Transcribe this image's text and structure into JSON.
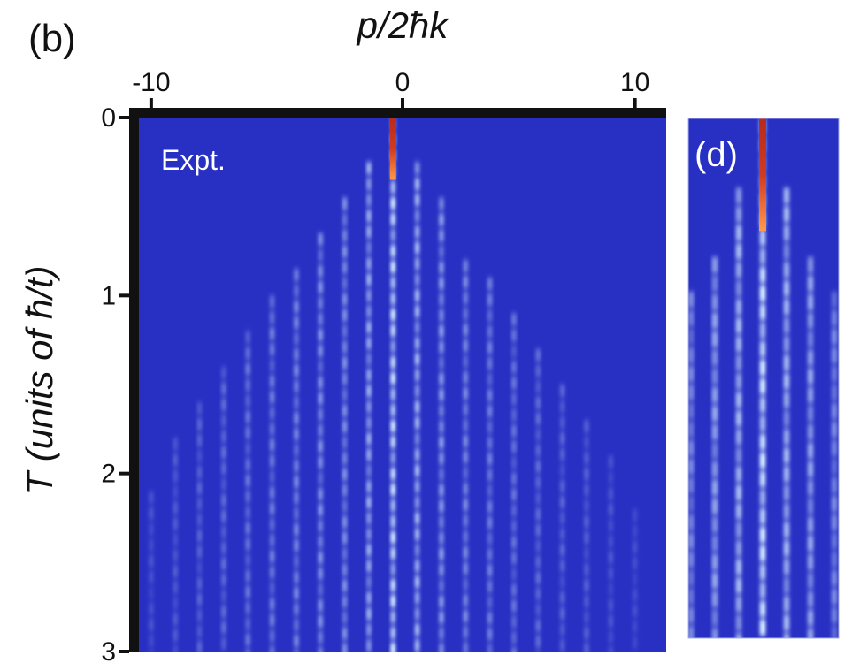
{
  "panel_b_label": "(b)",
  "xlabel": "p/2ħk",
  "ylabel_prefix": "T",
  "ylabel_rest": "(units of ħ/t)",
  "expt_label": "Expt.",
  "panel_d_label": "(d)",
  "colors": {
    "background": "#2830c4",
    "streak": "#cfe6ff",
    "hot": "#c0301e",
    "warm": "#ff9a4a"
  },
  "chart_data": {
    "type": "heatmap",
    "xlabel": "p/2ħk",
    "ylabel": "T (units of ħ/t)",
    "x_ticks": [
      -10,
      0,
      10
    ],
    "y_ticks": [
      0,
      1,
      2,
      3
    ],
    "xlim": [
      -10.8,
      11
    ],
    "ylim": [
      0,
      3
    ],
    "colormap": "blue-white-red",
    "main_streaks": [
      {
        "p": 0,
        "t_start": 0.0,
        "t_end": 3.0,
        "intensity": 1.0
      },
      {
        "p": -1,
        "t_start": 0.25,
        "t_end": 3.0,
        "intensity": 0.7
      },
      {
        "p": 1,
        "t_start": 0.25,
        "t_end": 3.0,
        "intensity": 0.75
      },
      {
        "p": -2,
        "t_start": 0.45,
        "t_end": 3.0,
        "intensity": 0.55
      },
      {
        "p": 2,
        "t_start": 0.45,
        "t_end": 3.0,
        "intensity": 0.6
      },
      {
        "p": -3,
        "t_start": 0.65,
        "t_end": 3.0,
        "intensity": 0.55
      },
      {
        "p": 3,
        "t_start": 0.8,
        "t_end": 3.0,
        "intensity": 0.5
      },
      {
        "p": -4,
        "t_start": 0.85,
        "t_end": 3.0,
        "intensity": 0.5
      },
      {
        "p": 4,
        "t_start": 0.9,
        "t_end": 3.0,
        "intensity": 0.45
      },
      {
        "p": -5,
        "t_start": 1.0,
        "t_end": 3.0,
        "intensity": 0.45
      },
      {
        "p": 5,
        "t_start": 1.1,
        "t_end": 3.0,
        "intensity": 0.4
      },
      {
        "p": -6,
        "t_start": 1.2,
        "t_end": 3.0,
        "intensity": 0.4
      },
      {
        "p": 6,
        "t_start": 1.3,
        "t_end": 3.0,
        "intensity": 0.35
      },
      {
        "p": -7,
        "t_start": 1.4,
        "t_end": 3.0,
        "intensity": 0.35
      },
      {
        "p": 7,
        "t_start": 1.5,
        "t_end": 3.0,
        "intensity": 0.3
      },
      {
        "p": -8,
        "t_start": 1.6,
        "t_end": 3.0,
        "intensity": 0.3
      },
      {
        "p": 8,
        "t_start": 1.7,
        "t_end": 3.0,
        "intensity": 0.28
      },
      {
        "p": -9,
        "t_start": 1.8,
        "t_end": 3.0,
        "intensity": 0.25
      },
      {
        "p": 9,
        "t_start": 1.9,
        "t_end": 3.0,
        "intensity": 0.22
      },
      {
        "p": -10,
        "t_start": 2.1,
        "t_end": 3.0,
        "intensity": 0.2
      },
      {
        "p": 10,
        "t_start": 2.2,
        "t_end": 3.0,
        "intensity": 0.18
      }
    ],
    "inset_streaks": [
      {
        "p": 0,
        "t_start": 0.0,
        "t_end": 3.0,
        "intensity": 1.0
      },
      {
        "p": -1,
        "t_start": 0.4,
        "t_end": 3.0,
        "intensity": 0.75
      },
      {
        "p": 1,
        "t_start": 0.4,
        "t_end": 3.0,
        "intensity": 0.75
      },
      {
        "p": -2,
        "t_start": 0.8,
        "t_end": 3.0,
        "intensity": 0.65
      },
      {
        "p": 2,
        "t_start": 0.8,
        "t_end": 3.0,
        "intensity": 0.65
      },
      {
        "p": -3,
        "t_start": 1.0,
        "t_end": 3.0,
        "intensity": 0.5
      },
      {
        "p": 3,
        "t_start": 1.0,
        "t_end": 3.0,
        "intensity": 0.5
      }
    ]
  }
}
